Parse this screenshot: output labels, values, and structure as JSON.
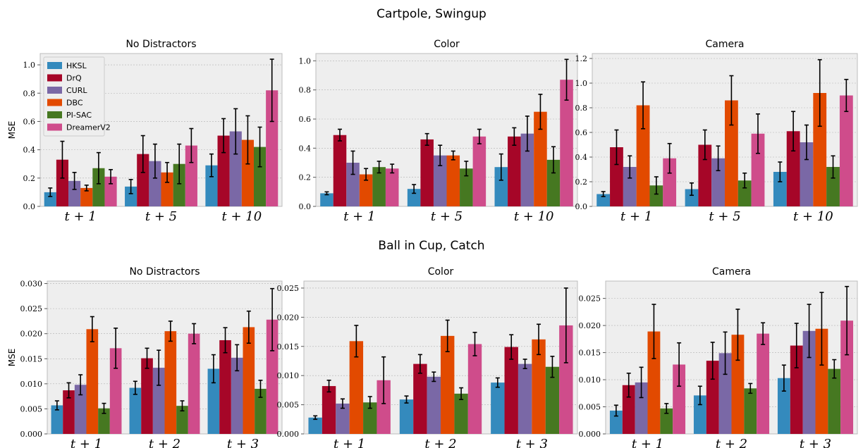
{
  "colors": {
    "HKSL": "#348ABD",
    "DrQ": "#A60628",
    "CURL": "#7A68A6",
    "DBC": "#E24A00",
    "PI-SAC": "#467821",
    "DreamerV2": "#CF4C8B"
  },
  "rows": [
    {
      "title": "Cartpole, Swingup"
    },
    {
      "title": "Ball in Cup, Catch"
    }
  ],
  "chart_data": [
    {
      "type": "bar",
      "title": "No Distractors",
      "ylabel": "MSE",
      "legend": "upper-left",
      "grid": true,
      "ylim": [
        0,
        1.08
      ],
      "yticks": [
        "0.0",
        "0.2",
        "0.4",
        "0.6",
        "0.8",
        "1.0"
      ],
      "categories": [
        "t + 1",
        "t + 5",
        "t + 10"
      ],
      "series": [
        {
          "name": "HKSL",
          "values": [
            0.1,
            0.14,
            0.29
          ],
          "errors": [
            0.03,
            0.05,
            0.08
          ]
        },
        {
          "name": "DrQ",
          "values": [
            0.33,
            0.37,
            0.5
          ],
          "errors": [
            0.13,
            0.13,
            0.12
          ]
        },
        {
          "name": "CURL",
          "values": [
            0.18,
            0.32,
            0.53
          ],
          "errors": [
            0.06,
            0.12,
            0.16
          ]
        },
        {
          "name": "DBC",
          "values": [
            0.13,
            0.24,
            0.47
          ],
          "errors": [
            0.02,
            0.07,
            0.17
          ]
        },
        {
          "name": "PI-SAC",
          "values": [
            0.27,
            0.3,
            0.42
          ],
          "errors": [
            0.11,
            0.14,
            0.14
          ]
        },
        {
          "name": "DreamerV2",
          "values": [
            0.21,
            0.43,
            0.82
          ],
          "errors": [
            0.05,
            0.12,
            0.22
          ]
        }
      ]
    },
    {
      "type": "bar",
      "title": "Color",
      "ylabel": "",
      "grid": true,
      "ylim": [
        0,
        1.05
      ],
      "yticks": [
        "0.0",
        "0.2",
        "0.4",
        "0.6",
        "0.8",
        "1.0"
      ],
      "categories": [
        "t + 1",
        "t + 5",
        "t + 10"
      ],
      "series": [
        {
          "name": "HKSL",
          "values": [
            0.09,
            0.12,
            0.27
          ],
          "errors": [
            0.01,
            0.03,
            0.09
          ]
        },
        {
          "name": "DrQ",
          "values": [
            0.49,
            0.46,
            0.48
          ],
          "errors": [
            0.04,
            0.04,
            0.06
          ]
        },
        {
          "name": "CURL",
          "values": [
            0.3,
            0.35,
            0.5
          ],
          "errors": [
            0.08,
            0.07,
            0.12
          ]
        },
        {
          "name": "DBC",
          "values": [
            0.22,
            0.35,
            0.65
          ],
          "errors": [
            0.04,
            0.03,
            0.12
          ]
        },
        {
          "name": "PI-SAC",
          "values": [
            0.27,
            0.26,
            0.32
          ],
          "errors": [
            0.04,
            0.05,
            0.09
          ]
        },
        {
          "name": "DreamerV2",
          "values": [
            0.26,
            0.48,
            0.87
          ],
          "errors": [
            0.03,
            0.05,
            0.14
          ]
        }
      ]
    },
    {
      "type": "bar",
      "title": "Camera",
      "ylabel": "",
      "grid": true,
      "ylim": [
        0,
        1.24
      ],
      "yticks": [
        "0.0",
        "0.2",
        "0.4",
        "0.6",
        "0.8",
        "1.0",
        "1.2"
      ],
      "categories": [
        "t + 1",
        "t + 5",
        "t + 10"
      ],
      "series": [
        {
          "name": "HKSL",
          "values": [
            0.1,
            0.14,
            0.28
          ],
          "errors": [
            0.02,
            0.05,
            0.08
          ]
        },
        {
          "name": "DrQ",
          "values": [
            0.48,
            0.5,
            0.61
          ],
          "errors": [
            0.14,
            0.12,
            0.16
          ]
        },
        {
          "name": "CURL",
          "values": [
            0.32,
            0.39,
            0.52
          ],
          "errors": [
            0.09,
            0.1,
            0.14
          ]
        },
        {
          "name": "DBC",
          "values": [
            0.82,
            0.86,
            0.92
          ],
          "errors": [
            0.19,
            0.2,
            0.27
          ]
        },
        {
          "name": "PI-SAC",
          "values": [
            0.17,
            0.21,
            0.32
          ],
          "errors": [
            0.07,
            0.06,
            0.09
          ]
        },
        {
          "name": "DreamerV2",
          "values": [
            0.39,
            0.59,
            0.9
          ],
          "errors": [
            0.12,
            0.16,
            0.13
          ]
        }
      ]
    },
    {
      "type": "bar",
      "title": "No Distractors",
      "ylabel": "MSE",
      "grid": true,
      "ylim": [
        0,
        0.0305
      ],
      "yticks": [
        "0.000",
        "0.005",
        "0.010",
        "0.015",
        "0.020",
        "0.025",
        "0.030"
      ],
      "categories": [
        "t + 1",
        "t + 2",
        "t + 3"
      ],
      "series": [
        {
          "name": "HKSL",
          "values": [
            0.0057,
            0.0092,
            0.013
          ],
          "errors": [
            0.0009,
            0.0013,
            0.0028
          ]
        },
        {
          "name": "DrQ",
          "values": [
            0.0087,
            0.0151,
            0.0187
          ],
          "errors": [
            0.0015,
            0.002,
            0.0025
          ]
        },
        {
          "name": "CURL",
          "values": [
            0.0098,
            0.0132,
            0.0152
          ],
          "errors": [
            0.002,
            0.0035,
            0.0026
          ]
        },
        {
          "name": "DBC",
          "values": [
            0.0209,
            0.0205,
            0.0213
          ],
          "errors": [
            0.0025,
            0.002,
            0.0032
          ]
        },
        {
          "name": "PI-SAC",
          "values": [
            0.0051,
            0.0056,
            0.009
          ],
          "errors": [
            0.001,
            0.001,
            0.0017
          ]
        },
        {
          "name": "DreamerV2",
          "values": [
            0.0171,
            0.02,
            0.0228
          ],
          "errors": [
            0.004,
            0.002,
            0.0062
          ]
        }
      ]
    },
    {
      "type": "bar",
      "title": "Color",
      "ylabel": "",
      "grid": true,
      "ylim": [
        0,
        0.0262
      ],
      "yticks": [
        "0.000",
        "0.005",
        "0.010",
        "0.015",
        "0.020",
        "0.025"
      ],
      "categories": [
        "t + 1",
        "t + 2",
        "t + 3"
      ],
      "series": [
        {
          "name": "HKSL",
          "values": [
            0.0028,
            0.0059,
            0.0088
          ],
          "errors": [
            0.0003,
            0.0006,
            0.0008
          ]
        },
        {
          "name": "DrQ",
          "values": [
            0.0082,
            0.012,
            0.0149
          ],
          "errors": [
            0.001,
            0.0016,
            0.0021
          ]
        },
        {
          "name": "CURL",
          "values": [
            0.0052,
            0.0098,
            0.012
          ],
          "errors": [
            0.0008,
            0.0008,
            0.0008
          ]
        },
        {
          "name": "DBC",
          "values": [
            0.0159,
            0.0168,
            0.0162
          ],
          "errors": [
            0.0027,
            0.0027,
            0.0026
          ]
        },
        {
          "name": "PI-SAC",
          "values": [
            0.0054,
            0.0069,
            0.0115
          ],
          "errors": [
            0.001,
            0.001,
            0.0018
          ]
        },
        {
          "name": "DreamerV2",
          "values": [
            0.0092,
            0.0154,
            0.0186
          ],
          "errors": [
            0.004,
            0.002,
            0.0064
          ]
        }
      ]
    },
    {
      "type": "bar",
      "title": "Camera",
      "ylabel": "",
      "grid": true,
      "ylim": [
        0,
        0.0282
      ],
      "yticks": [
        "0.000",
        "0.005",
        "0.010",
        "0.015",
        "0.020",
        "0.025"
      ],
      "categories": [
        "t + 1",
        "t + 2",
        "t + 3"
      ],
      "series": [
        {
          "name": "HKSL",
          "values": [
            0.0043,
            0.0071,
            0.0103
          ],
          "errors": [
            0.001,
            0.0017,
            0.0024
          ]
        },
        {
          "name": "DrQ",
          "values": [
            0.009,
            0.0135,
            0.0163
          ],
          "errors": [
            0.0022,
            0.0034,
            0.0041
          ]
        },
        {
          "name": "CURL",
          "values": [
            0.0095,
            0.0149,
            0.019
          ],
          "errors": [
            0.0028,
            0.0039,
            0.0049
          ]
        },
        {
          "name": "DBC",
          "values": [
            0.0189,
            0.0183,
            0.0194
          ],
          "errors": [
            0.005,
            0.0047,
            0.0067
          ]
        },
        {
          "name": "PI-SAC",
          "values": [
            0.0047,
            0.0084,
            0.012
          ],
          "errors": [
            0.0009,
            0.0009,
            0.0017
          ]
        },
        {
          "name": "DreamerV2",
          "values": [
            0.0128,
            0.0185,
            0.0209
          ],
          "errors": [
            0.004,
            0.002,
            0.0063
          ]
        }
      ]
    }
  ]
}
